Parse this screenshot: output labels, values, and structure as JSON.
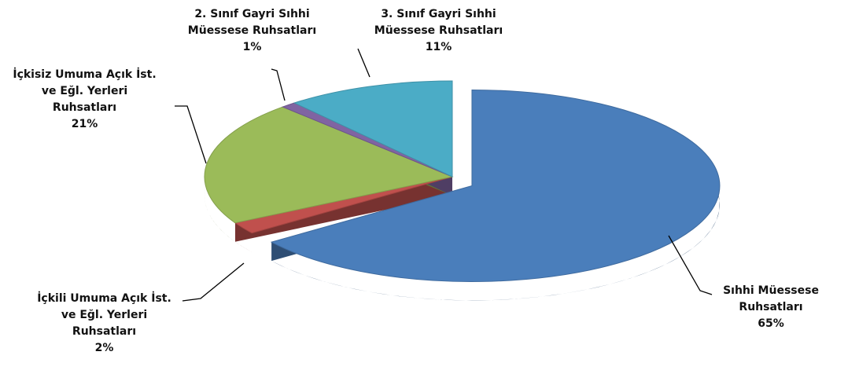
{
  "chart_data": {
    "type": "pie",
    "categories": [
      "Sıhhi Müessese Ruhsatları",
      "İçkili Umuma Açık İst. ve Eğl. Yerleri Ruhsatları",
      "İçkisiz Umuma Açık İst. ve Eğl. Yerleri Ruhsatları",
      "2. Sınıf Gayri Sıhhi Müessese Ruhsatları",
      "3. Sınıf Gayri Sıhhi Müessese Ruhsatları"
    ],
    "values": [
      65,
      2,
      21,
      1,
      11
    ],
    "value_labels": [
      "65%",
      "2%",
      "21%",
      "1%",
      "11%"
    ],
    "colors": [
      "#4a7ebb",
      "#c0504d",
      "#9bbb59",
      "#8064a2",
      "#4bacc6"
    ]
  }
}
